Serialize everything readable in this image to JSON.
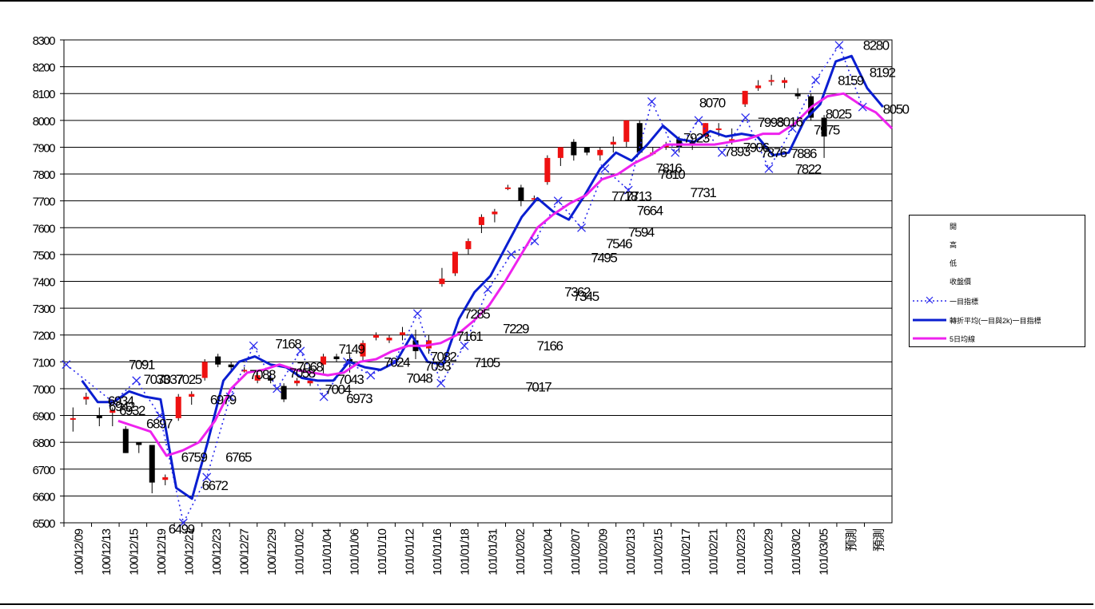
{
  "chart_data": {
    "type": "line",
    "title": "",
    "xlabel": "",
    "ylabel": "",
    "ylim": [
      6500,
      8300
    ],
    "yticks": [
      6500,
      6600,
      6700,
      6800,
      6900,
      7000,
      7100,
      7200,
      7300,
      7400,
      7500,
      7600,
      7700,
      7800,
      7900,
      8000,
      8100,
      8200,
      8300
    ],
    "grid": true,
    "legend_position": "right",
    "x_tick_labels": [
      "100/12/09",
      "100/12/13",
      "100/12/15",
      "100/12/19",
      "100/12/21",
      "100/12/23",
      "100/12/27",
      "100/12/29",
      "101/01/02",
      "101/01/04",
      "101/01/06",
      "101/01/10",
      "101/01/12",
      "101/01/16",
      "101/01/18",
      "101/01/31",
      "101/02/02",
      "101/02/04",
      "101/02/07",
      "101/02/09",
      "101/02/13",
      "101/02/15",
      "101/02/17",
      "101/02/21",
      "101/02/23",
      "101/02/29",
      "101/03/02",
      "101/03/05",
      "預測",
      "預測"
    ],
    "legend": [
      "開",
      "高",
      "低",
      "收盤價",
      "一目指標",
      "轉折平均(一目與2k)一目指標",
      "5日均線"
    ],
    "colors": {
      "up": "#ee1111",
      "down": "#000000",
      "oneeye": "#2a2aee",
      "turning": "#0a1ed0",
      "ma5": "#ee22ee"
    },
    "candles": [
      [
        6890,
        6930,
        6840,
        6890
      ],
      [
        6960,
        6985,
        6940,
        6970
      ],
      [
        6900,
        6930,
        6860,
        6890
      ],
      [
        6910,
        6930,
        6860,
        6920
      ],
      [
        6850,
        6860,
        6760,
        6760
      ],
      [
        6800,
        6800,
        6760,
        6790
      ],
      [
        6790,
        6790,
        6610,
        6650
      ],
      [
        6660,
        6680,
        6640,
        6670
      ],
      [
        6890,
        6980,
        6880,
        6970
      ],
      [
        6970,
        6990,
        6940,
        6980
      ],
      [
        7040,
        7110,
        7030,
        7100
      ],
      [
        7120,
        7130,
        7080,
        7090
      ],
      [
        7090,
        7100,
        7070,
        7080
      ],
      [
        7070,
        7080,
        7060,
        7070
      ],
      [
        7030,
        7060,
        7020,
        7050
      ],
      [
        7040,
        7060,
        7020,
        7030
      ],
      [
        7010,
        7020,
        6950,
        6960
      ],
      [
        7020,
        7040,
        7010,
        7030
      ],
      [
        7020,
        7040,
        7010,
        7030
      ],
      [
        7090,
        7130,
        7050,
        7120
      ],
      [
        7120,
        7130,
        7100,
        7110
      ],
      [
        7110,
        7130,
        7060,
        7100
      ],
      [
        7120,
        7180,
        7100,
        7170
      ],
      [
        7190,
        7210,
        7180,
        7200
      ],
      [
        7180,
        7200,
        7170,
        7190
      ],
      [
        7200,
        7230,
        7180,
        7210
      ],
      [
        7180,
        7220,
        7110,
        7140
      ],
      [
        7150,
        7200,
        7130,
        7180
      ],
      [
        7390,
        7450,
        7380,
        7410
      ],
      [
        7430,
        7510,
        7420,
        7510
      ],
      [
        7520,
        7560,
        7500,
        7550
      ],
      [
        7610,
        7650,
        7580,
        7640
      ],
      [
        7650,
        7670,
        7620,
        7660
      ],
      [
        7750,
        7760,
        7740,
        7750
      ],
      [
        7750,
        7760,
        7680,
        7700
      ],
      [
        7710,
        7720,
        7700,
        7710
      ],
      [
        7770,
        7870,
        7760,
        7860
      ],
      [
        7860,
        7900,
        7830,
        7900
      ],
      [
        7920,
        7930,
        7850,
        7870
      ],
      [
        7900,
        7900,
        7870,
        7880
      ],
      [
        7870,
        7900,
        7850,
        7890
      ],
      [
        7910,
        7940,
        7880,
        7920
      ],
      [
        7920,
        8000,
        7900,
        8000
      ],
      [
        7990,
        8000,
        7880,
        7880
      ],
      [
        7880,
        7900,
        7870,
        7880
      ],
      [
        7900,
        7920,
        7890,
        7910
      ],
      [
        7930,
        7940,
        7880,
        7900
      ],
      [
        7920,
        7940,
        7890,
        7910
      ],
      [
        7940,
        7990,
        7930,
        7990
      ],
      [
        7970,
        7990,
        7940,
        7970
      ],
      [
        7930,
        7970,
        7910,
        7930
      ],
      [
        8060,
        8110,
        8050,
        8110
      ],
      [
        8120,
        8150,
        8110,
        8130
      ],
      [
        8150,
        8170,
        8130,
        8150
      ],
      [
        8140,
        8160,
        8120,
        8150
      ],
      [
        8100,
        8120,
        8080,
        8090
      ],
      [
        8090,
        8100,
        8000,
        8010
      ],
      [
        8010,
        8020,
        7860,
        7940
      ]
    ],
    "oneeye": [
      7090,
      null,
      6950,
      7030,
      6900,
      6500,
      6670,
      6970,
      7160,
      7000,
      7140,
      6970,
      7100,
      7050,
      7100,
      7280,
      7020,
      7160,
      7370,
      7500,
      7550,
      7700,
      7600,
      7820,
      7740,
      8070,
      7880,
      8000,
      7880,
      8010,
      7820,
      7970,
      8150,
      8280,
      8050
    ],
    "turning": [
      7030,
      6950,
      6950,
      6990,
      6970,
      6960,
      6630,
      6590,
      6800,
      7030,
      7100,
      7120,
      7090,
      7080,
      7040,
      7030,
      7030,
      7100,
      7080,
      7070,
      7100,
      7200,
      7100,
      7090,
      7260,
      7360,
      7420,
      7530,
      7640,
      7710,
      7660,
      7630,
      7720,
      7820,
      7880,
      7850,
      7910,
      7980,
      7930,
      7920,
      7960,
      7940,
      7950,
      7940,
      7870,
      7880,
      8000,
      8060,
      8220,
      8240,
      8120,
      8050
    ],
    "ma5": [
      6880,
      6860,
      6840,
      6750,
      6770,
      6800,
      6880,
      7000,
      7060,
      7070,
      7090,
      7070,
      7060,
      7050,
      7060,
      7100,
      7110,
      7140,
      7160,
      7160,
      7170,
      7200,
      7250,
      7310,
      7400,
      7500,
      7600,
      7650,
      7690,
      7720,
      7780,
      7800,
      7840,
      7870,
      7910,
      7910,
      7910,
      7910,
      7920,
      7930,
      7950,
      7950,
      7990,
      8050,
      8090,
      8100,
      8060,
      8030,
      7970
    ],
    "annotations": [
      {
        "text": "7091",
        "x": 14.3,
        "y": 7091
      },
      {
        "text": "6934",
        "x": 9.7,
        "y": 6955
      },
      {
        "text": "6942",
        "x": 9.9,
        "y": 6935
      },
      {
        "text": "6932",
        "x": 12.2,
        "y": 6920
      },
      {
        "text": "7033",
        "x": 17.6,
        "y": 7035
      },
      {
        "text": "7037",
        "x": 20.6,
        "y": 7035
      },
      {
        "text": "7025",
        "x": 24.7,
        "y": 7035
      },
      {
        "text": "6897",
        "x": 18.2,
        "y": 6870
      },
      {
        "text": "6759",
        "x": 25.9,
        "y": 6745
      },
      {
        "text": "6765",
        "x": 35.7,
        "y": 6745
      },
      {
        "text": "6672",
        "x": 30.5,
        "y": 6640
      },
      {
        "text": "6499",
        "x": 23.1,
        "y": 6478
      },
      {
        "text": "6979",
        "x": 32.3,
        "y": 6960
      },
      {
        "text": "7168",
        "x": 46.7,
        "y": 7168
      },
      {
        "text": "7088",
        "x": 41,
        "y": 7054
      },
      {
        "text": "7058",
        "x": 49.8,
        "y": 7060
      },
      {
        "text": "7068",
        "x": 51.5,
        "y": 7082
      },
      {
        "text": "7149",
        "x": 60.7,
        "y": 7149
      },
      {
        "text": "7004",
        "x": 57.7,
        "y": 6998
      },
      {
        "text": "7043",
        "x": 60.5,
        "y": 7035
      },
      {
        "text": "6973",
        "x": 62.4,
        "y": 6964
      },
      {
        "text": "7024",
        "x": 70.7,
        "y": 7100
      },
      {
        "text": "7048",
        "x": 75.7,
        "y": 7040
      },
      {
        "text": "7093",
        "x": 79.7,
        "y": 7085
      },
      {
        "text": "7082",
        "x": 81,
        "y": 7120
      },
      {
        "text": "7161",
        "x": 86.8,
        "y": 7196
      },
      {
        "text": "7285",
        "x": 88.4,
        "y": 7280
      },
      {
        "text": "7229",
        "x": 97,
        "y": 7225
      },
      {
        "text": "7105",
        "x": 90.6,
        "y": 7098
      },
      {
        "text": "7166",
        "x": 104.5,
        "y": 7160
      },
      {
        "text": "7017",
        "x": 102,
        "y": 7008
      },
      {
        "text": "7362",
        "x": 110.6,
        "y": 7362
      },
      {
        "text": "7345",
        "x": 112.5,
        "y": 7345
      },
      {
        "text": "7546",
        "x": 119.8,
        "y": 7542
      },
      {
        "text": "7495",
        "x": 116.5,
        "y": 7490
      },
      {
        "text": "7664",
        "x": 126.6,
        "y": 7665
      },
      {
        "text": "7594",
        "x": 124.7,
        "y": 7585
      },
      {
        "text": "7718",
        "x": 121,
        "y": 7718
      },
      {
        "text": "7713",
        "x": 124.1,
        "y": 7718
      },
      {
        "text": "7816",
        "x": 130.8,
        "y": 7823
      },
      {
        "text": "7810",
        "x": 131.5,
        "y": 7800
      },
      {
        "text": "7731",
        "x": 138.4,
        "y": 7731
      },
      {
        "text": "8070",
        "x": 140.4,
        "y": 8066
      },
      {
        "text": "7923",
        "x": 136.9,
        "y": 7935
      },
      {
        "text": "7893",
        "x": 145.9,
        "y": 7885
      },
      {
        "text": "7906",
        "x": 150.1,
        "y": 7900
      },
      {
        "text": "7993",
        "x": 153.3,
        "y": 7993
      },
      {
        "text": "8016",
        "x": 157.5,
        "y": 7995
      },
      {
        "text": "7876",
        "x": 154,
        "y": 7880
      },
      {
        "text": "7886",
        "x": 160.6,
        "y": 7878
      },
      {
        "text": "7822",
        "x": 161.6,
        "y": 7820
      },
      {
        "text": "7975",
        "x": 165.7,
        "y": 7965
      },
      {
        "text": "8025",
        "x": 168.3,
        "y": 8025
      },
      {
        "text": "8159",
        "x": 171,
        "y": 8150
      },
      {
        "text": "8280",
        "x": 176.6,
        "y": 8280
      },
      {
        "text": "8192",
        "x": 178,
        "y": 8180
      },
      {
        "text": "8050",
        "x": 181,
        "y": 8042
      }
    ]
  }
}
